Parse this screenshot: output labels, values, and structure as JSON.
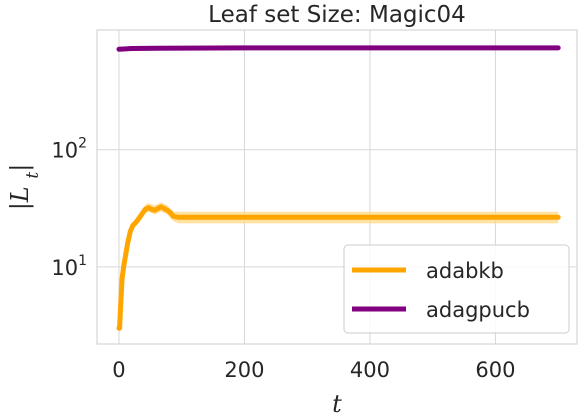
{
  "chart_data": {
    "type": "line",
    "title": "Leaf set Size: Magic04",
    "xlabel": "t",
    "ylabel": "|L_t|",
    "xlim": [
      -35,
      730
    ],
    "xticks": [
      0,
      200,
      400,
      600
    ],
    "y_scale": "log",
    "ylim": [
      2.2,
      1050
    ],
    "yticks": [
      {
        "value": 10,
        "base": "10",
        "exp": "1"
      },
      {
        "value": 100,
        "base": "10",
        "exp": "2"
      }
    ],
    "grid": true,
    "legend": "lower-right",
    "series": [
      {
        "name": "adabkb",
        "color": "#FFA500",
        "band_color": "#FFD98A",
        "points": [
          [
            0,
            3.0
          ],
          [
            1,
            3.0
          ],
          [
            3,
            5.0
          ],
          [
            5,
            8.0
          ],
          [
            8,
            10.5
          ],
          [
            11,
            13.0
          ],
          [
            14,
            16.0
          ],
          [
            18,
            20.0
          ],
          [
            22,
            22.5
          ],
          [
            27,
            24.0
          ],
          [
            32,
            26.0
          ],
          [
            37,
            28.5
          ],
          [
            42,
            31.0
          ],
          [
            47,
            32.0
          ],
          [
            52,
            31.0
          ],
          [
            57,
            30.5
          ],
          [
            62,
            31.5
          ],
          [
            67,
            32.5
          ],
          [
            72,
            31.5
          ],
          [
            77,
            30.5
          ],
          [
            82,
            29.0
          ],
          [
            87,
            27.0
          ],
          [
            95,
            26.5
          ],
          [
            200,
            26.5
          ],
          [
            400,
            26.5
          ],
          [
            600,
            26.5
          ],
          [
            700,
            26.5
          ]
        ],
        "band": [
          [
            0,
            2.9,
            3.1
          ],
          [
            3,
            4.8,
            5.3
          ],
          [
            8,
            10.0,
            11.2
          ],
          [
            14,
            15.0,
            17.0
          ],
          [
            22,
            21.0,
            24.0
          ],
          [
            32,
            24.0,
            28.0
          ],
          [
            42,
            28.5,
            34.0
          ],
          [
            47,
            29.5,
            35.0
          ],
          [
            57,
            28.0,
            33.5
          ],
          [
            67,
            29.5,
            35.5
          ],
          [
            77,
            28.0,
            33.5
          ],
          [
            87,
            24.5,
            29.5
          ],
          [
            95,
            23.5,
            29.5
          ],
          [
            200,
            23.5,
            29.5
          ],
          [
            400,
            23.5,
            29.5
          ],
          [
            600,
            23.5,
            29.5
          ],
          [
            700,
            23.5,
            29.5
          ]
        ]
      },
      {
        "name": "adagpucb",
        "color": "#800080",
        "points": [
          [
            0,
            720
          ],
          [
            20,
            730
          ],
          [
            60,
            735
          ],
          [
            200,
            738
          ],
          [
            400,
            738
          ],
          [
            600,
            738
          ],
          [
            700,
            738
          ]
        ]
      }
    ]
  }
}
